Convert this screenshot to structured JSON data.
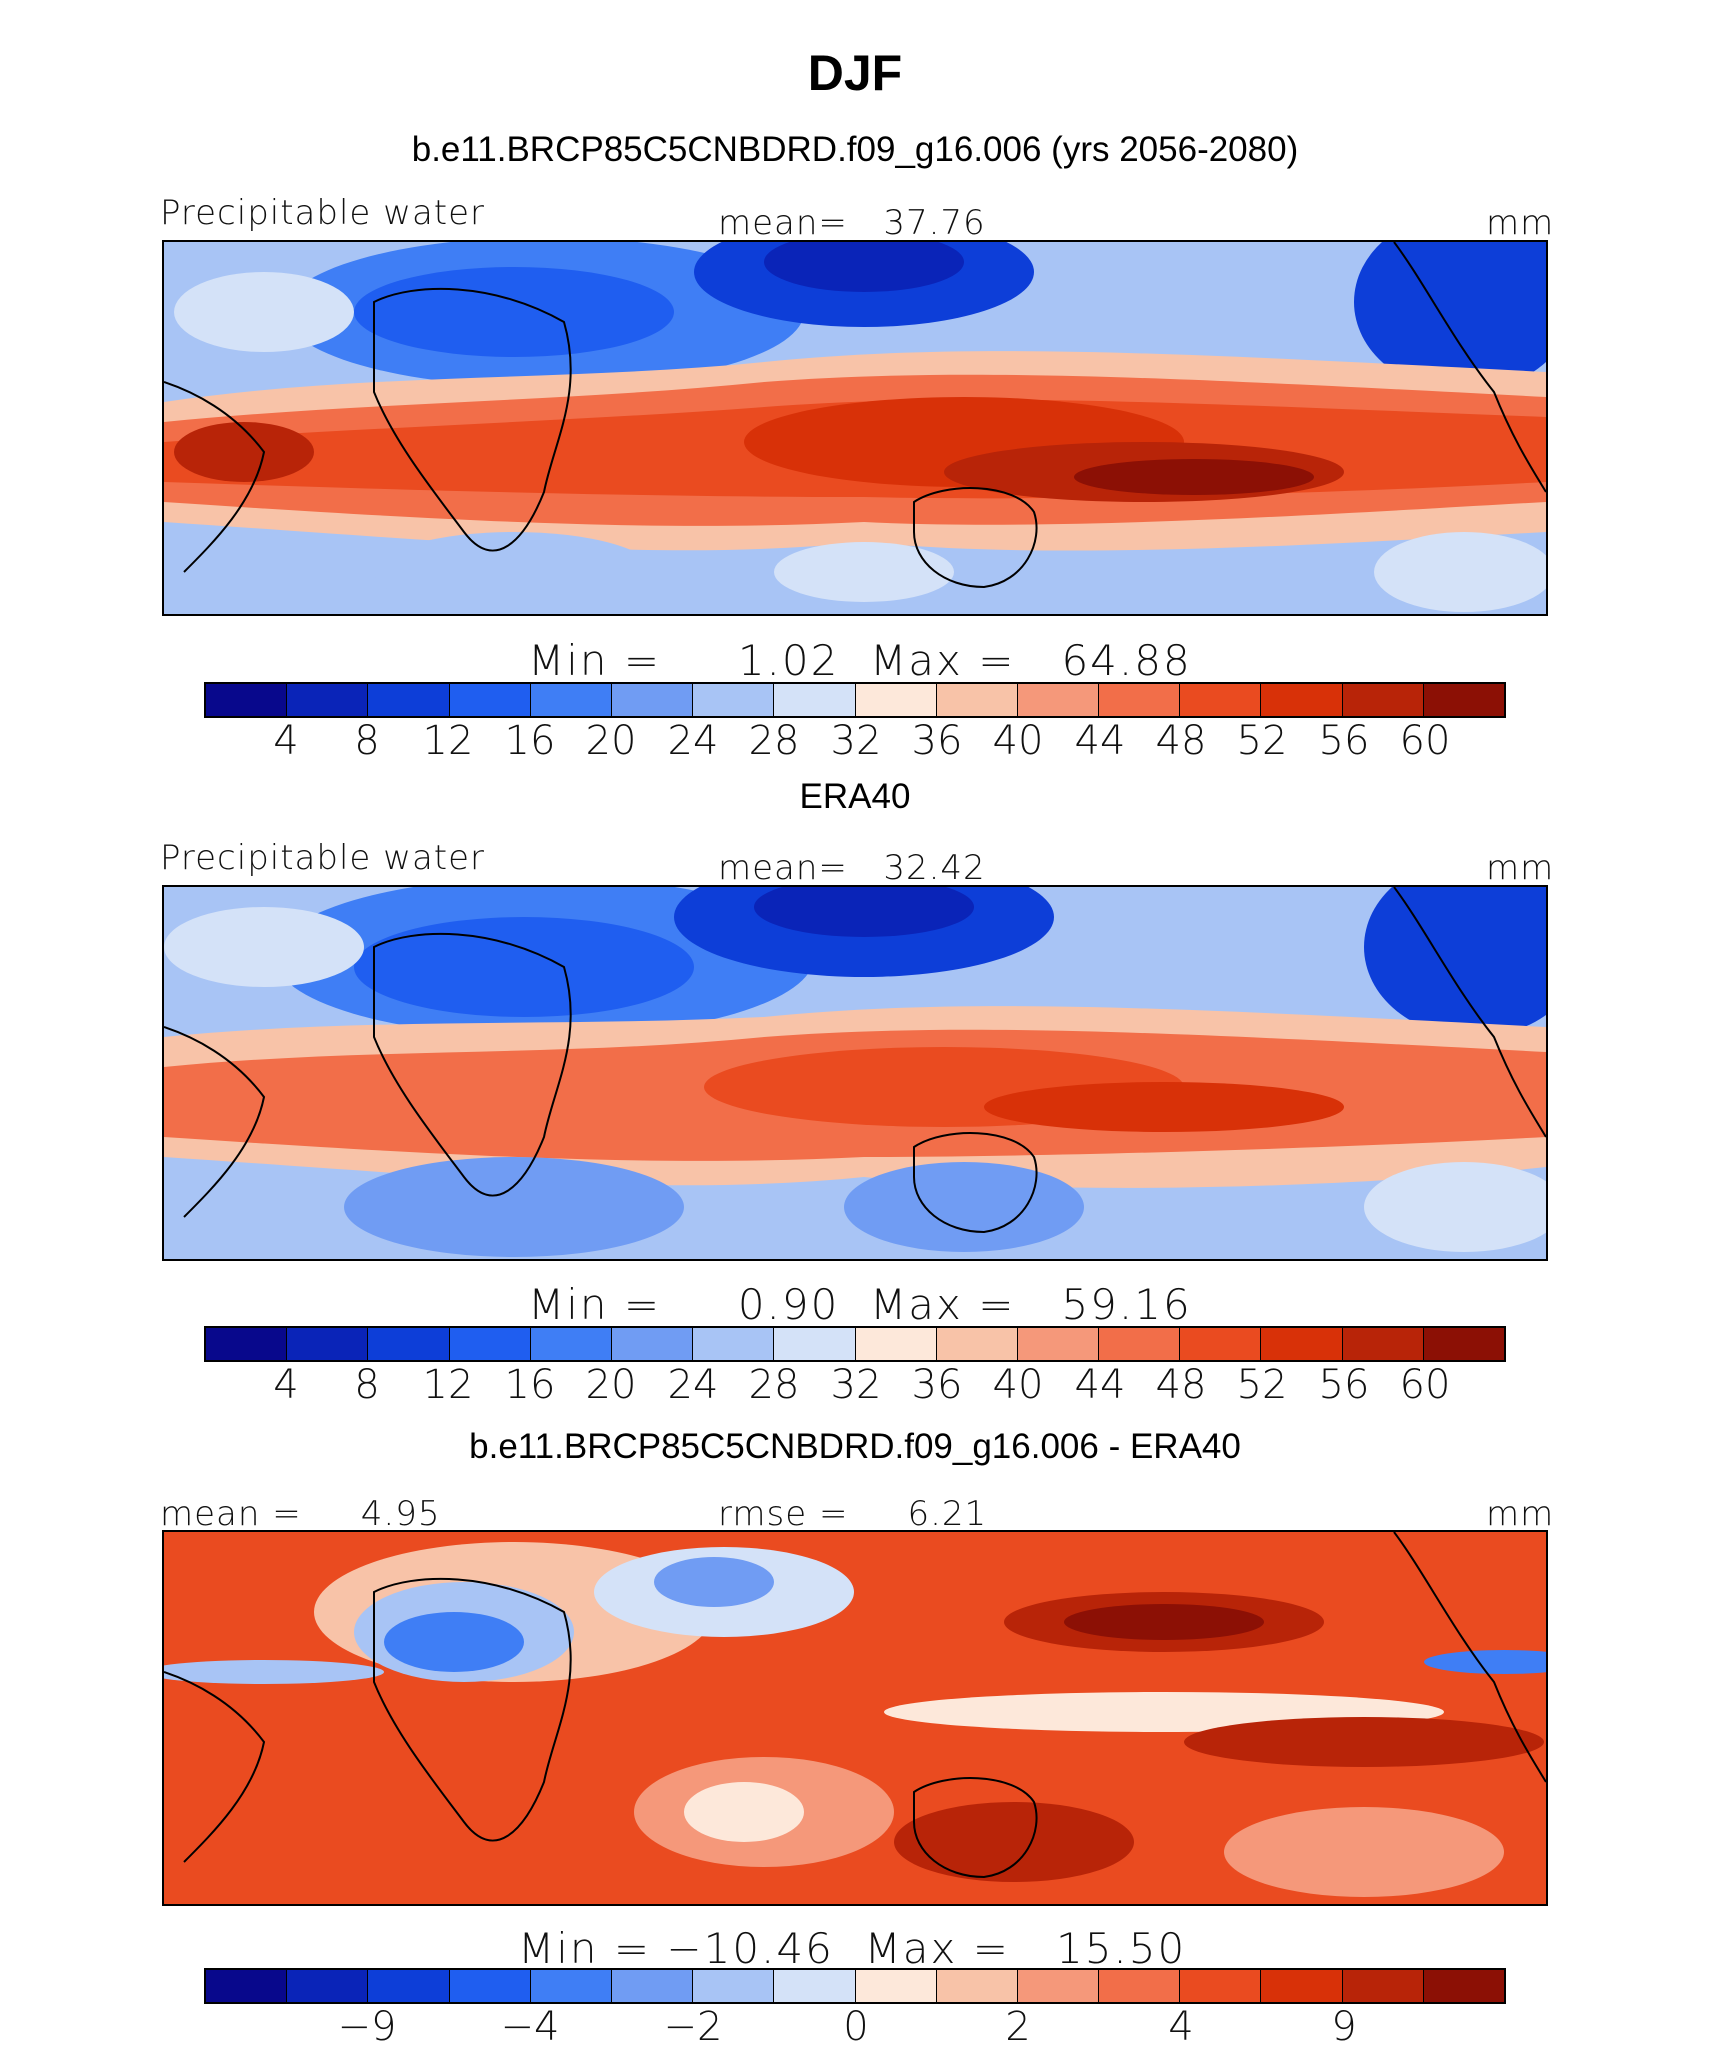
{
  "figure": {
    "title": "DJF"
  },
  "panels": [
    {
      "title": "b.e11.BRCP85C5CNBDRD.f09_g16.006 (yrs 2056-2080)",
      "left_label": "Precipitable water",
      "center_label": "mean=   37.76",
      "units": "mm",
      "stats": "Min =     1.02  Max =   64.88",
      "min": 1.02,
      "max": 64.88,
      "mean": 37.76,
      "colorbar_labels": [
        "4",
        "8",
        "12",
        "16",
        "20",
        "24",
        "28",
        "32",
        "36",
        "40",
        "44",
        "48",
        "52",
        "56",
        "60"
      ]
    },
    {
      "title": "ERA40",
      "left_label": "Precipitable water",
      "center_label": "mean=   32.42",
      "units": "mm",
      "stats": "Min =     0.90  Max =   59.16",
      "min": 0.9,
      "max": 59.16,
      "mean": 32.42,
      "colorbar_labels": [
        "4",
        "8",
        "12",
        "16",
        "20",
        "24",
        "28",
        "32",
        "36",
        "40",
        "44",
        "48",
        "52",
        "56",
        "60"
      ]
    },
    {
      "title": "b.e11.BRCP85C5CNBDRD.f09_g16.006 - ERA40",
      "left_label": "mean =     4.95",
      "center_label": "rmse =     6.21",
      "units": "mm",
      "stats": "Min = −10.46  Max =   15.50",
      "min": -10.46,
      "max": 15.5,
      "mean": 4.95,
      "rmse": 6.21,
      "colorbar_labels": [
        "−9",
        "−4",
        "−2",
        "0",
        "2",
        "4",
        "9"
      ]
    }
  ],
  "colormap": [
    "#08088c",
    "#0a24b8",
    "#0d3ed8",
    "#1f5ef0",
    "#3f7ef5",
    "#709cf3",
    "#a8c4f5",
    "#d4e2f8",
    "#fde8da",
    "#f8c3a8",
    "#f5987a",
    "#f26e49",
    "#ea4b20",
    "#d83108",
    "#b82408",
    "#8c1005"
  ]
}
